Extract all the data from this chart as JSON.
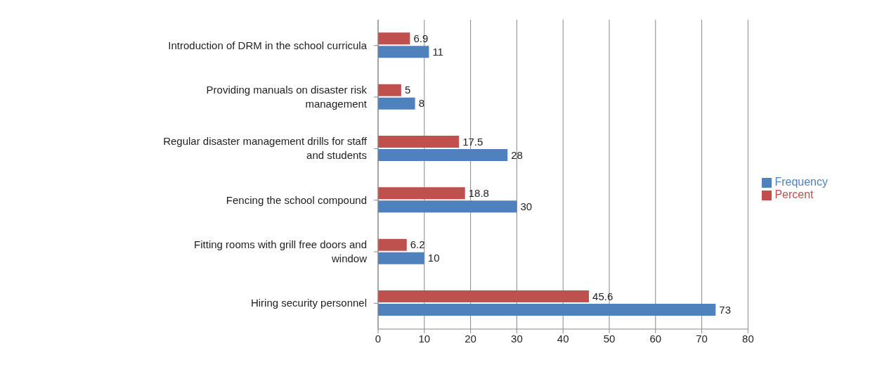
{
  "chart_data": {
    "type": "bar",
    "orientation": "horizontal",
    "categories": [
      "Introduction of DRM in the school curricula",
      "Providing manuals on disaster risk management",
      "Regular disaster management drills for staff and students",
      "Fencing the school compound",
      "Fitting rooms with grill free doors and window",
      "Hiring security personnel"
    ],
    "series": [
      {
        "name": "Percent",
        "color": "#c0504d",
        "values": [
          6.9,
          5,
          17.5,
          18.8,
          6.2,
          45.6
        ]
      },
      {
        "name": "Frequency",
        "color": "#4f81bd",
        "values": [
          11,
          8,
          28,
          30,
          10,
          73
        ]
      }
    ],
    "xlim": [
      0,
      80
    ],
    "xticks": [
      0,
      10,
      20,
      30,
      40,
      50,
      60,
      70,
      80
    ],
    "grid": "x",
    "legend": "right",
    "data_labels": true
  }
}
